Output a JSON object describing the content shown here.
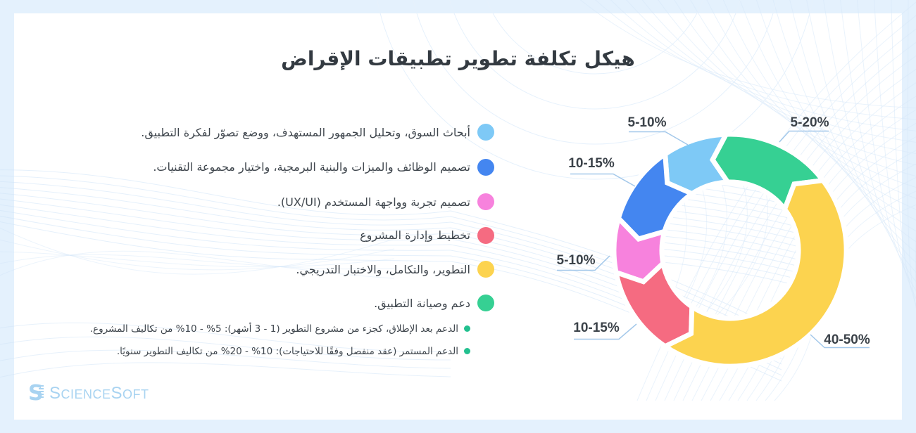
{
  "title": "هيكل تكلفة تطوير تطبيقات الإقراض",
  "legend": {
    "items": [
      {
        "label": "أبحاث السوق، وتحليل الجمهور المستهدف، ووضع تصوّر لفكرة التطبيق.",
        "color": "#7ec9f6"
      },
      {
        "label": "تصميم الوظائف والميزات والبنية البرمجية، واختيار مجموعة التقنيات.",
        "color": "#4486f0"
      },
      {
        "label": "تصميم تجربة وواجهة المستخدم (UX/UI).",
        "color": "#f782dd"
      },
      {
        "label": "تخطيط وإدارة المشروع",
        "color": "#f56b81"
      },
      {
        "label": "التطوير، والتكامل، والاختبار التدريجي.",
        "color": "#fcd34f"
      },
      {
        "label": "دعم وصيانة التطبيق.",
        "color": "#36d093"
      }
    ],
    "footnotes": [
      {
        "label": "الدعم بعد الإطلاق، كجزء من مشروع التطوير (1 - 3 أشهر): 5% - 10% من تكاليف المشروع.",
        "color": "#22c08f"
      },
      {
        "label": "الدعم المستمر (عقد منفصل وفقًا للاحتياجات): 10% - 20% من تكاليف التطوير سنويًا.",
        "color": "#22c08f"
      }
    ]
  },
  "chart_data": {
    "type": "pie",
    "subtype": "donut-arrow-segments",
    "title": "هيكل تكلفة تطوير تطبيقات الإقراض",
    "legend_position": "left",
    "segments": [
      {
        "name": "support",
        "label": "5-20%",
        "value_range": [
          5,
          20
        ],
        "color": "#36d093",
        "start_angle": 37,
        "end_angle": 92
      },
      {
        "name": "research",
        "label": "5-10%",
        "value_range": [
          5,
          10
        ],
        "color": "#7ec9f6",
        "start_angle": 92,
        "end_angle": 124
      },
      {
        "name": "design",
        "label": "10-15%",
        "value_range": [
          10,
          15
        ],
        "color": "#4486f0",
        "start_angle": 124,
        "end_angle": 164
      },
      {
        "name": "ux",
        "label": "5-10%",
        "value_range": [
          5,
          10
        ],
        "color": "#f782dd",
        "start_angle": 164,
        "end_angle": 191
      },
      {
        "name": "planning",
        "label": "10-15%",
        "value_range": [
          10,
          15
        ],
        "color": "#f56b81",
        "start_angle": 191,
        "end_angle": 236
      },
      {
        "name": "development",
        "label": "40-50%",
        "value_range": [
          40,
          50
        ],
        "color": "#fcd34f",
        "start_angle": 236,
        "end_angle": 397
      }
    ]
  },
  "logo": {
    "text": "ScienceSoft",
    "parts": [
      "S",
      "cience",
      "S",
      "oft"
    ]
  }
}
